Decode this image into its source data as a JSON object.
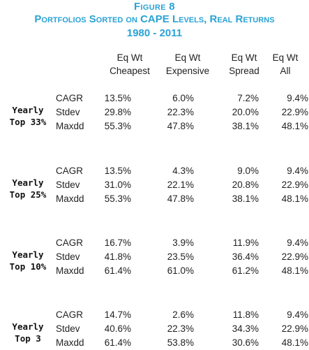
{
  "figure": {
    "title": "Figure 8",
    "subtitle": "Portfolios Sorted on CAPE Levels, Real Returns",
    "period": "1980 - 2011"
  },
  "columns": [
    {
      "line1": "Eq Wt",
      "line2": "Cheapest"
    },
    {
      "line1": "Eq Wt",
      "line2": "Expensive"
    },
    {
      "line1": "Eq Wt",
      "line2": "Spread"
    },
    {
      "line1": "Eq Wt",
      "line2": "All"
    }
  ],
  "sections": [
    {
      "name_line1": "Yearly",
      "name_line2": "Top 33%",
      "rows": [
        {
          "metric": "CAGR",
          "values": [
            "13.5%",
            "6.0%",
            "7.2%",
            "9.4%"
          ]
        },
        {
          "metric": "Stdev",
          "values": [
            "29.8%",
            "22.3%",
            "20.0%",
            "22.9%"
          ]
        },
        {
          "metric": "Maxdd",
          "values": [
            "55.3%",
            "47.8%",
            "38.1%",
            "48.1%"
          ]
        }
      ]
    },
    {
      "name_line1": "Yearly",
      "name_line2": "Top 25%",
      "rows": [
        {
          "metric": "CAGR",
          "values": [
            "13.5%",
            "4.3%",
            "9.0%",
            "9.4%"
          ]
        },
        {
          "metric": "Stdev",
          "values": [
            "31.0%",
            "22.1%",
            "20.8%",
            "22.9%"
          ]
        },
        {
          "metric": "Maxdd",
          "values": [
            "55.3%",
            "47.8%",
            "38.1%",
            "48.1%"
          ]
        }
      ]
    },
    {
      "name_line1": "Yearly",
      "name_line2": "Top 10%",
      "rows": [
        {
          "metric": "CAGR",
          "values": [
            "16.7%",
            "3.9%",
            "11.9%",
            "9.4%"
          ]
        },
        {
          "metric": "Stdev",
          "values": [
            "41.8%",
            "23.5%",
            "36.4%",
            "22.9%"
          ]
        },
        {
          "metric": "Maxdd",
          "values": [
            "61.4%",
            "61.0%",
            "61.2%",
            "48.1%"
          ]
        }
      ]
    },
    {
      "name_line1": "Yearly",
      "name_line2": "Top 3",
      "rows": [
        {
          "metric": "CAGR",
          "values": [
            "14.7%",
            "2.6%",
            "11.8%",
            "9.4%"
          ]
        },
        {
          "metric": "Stdev",
          "values": [
            "40.6%",
            "22.3%",
            "34.3%",
            "22.9%"
          ]
        },
        {
          "metric": "Maxdd",
          "values": [
            "61.4%",
            "53.8%",
            "30.6%",
            "48.1%"
          ]
        }
      ]
    }
  ],
  "colors": {
    "title": "#29a3d6",
    "text": "#222222"
  }
}
